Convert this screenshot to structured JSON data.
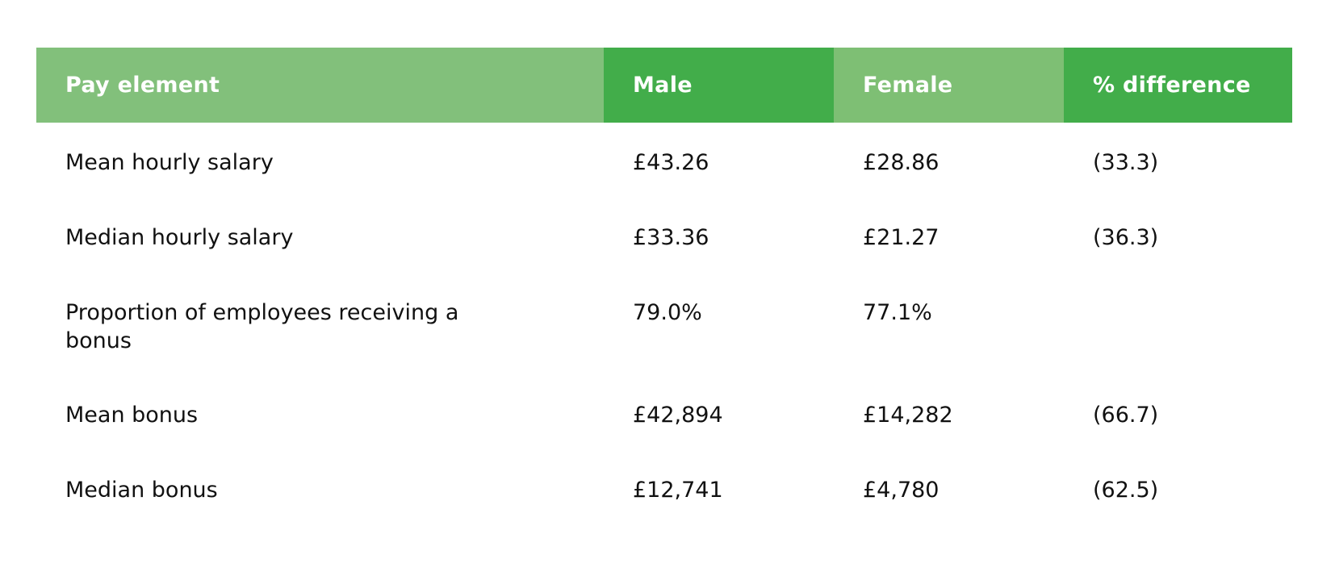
{
  "table": {
    "headers": [
      "Pay element",
      "Male",
      "Female",
      "% difference"
    ],
    "header_colors": [
      "#82c07b",
      "#42ad4a",
      "#7ebf74",
      "#42ad4a"
    ],
    "rows": [
      [
        "Mean hourly salary",
        "£43.26",
        "£28.86",
        "(33.3)"
      ],
      [
        "Median hourly salary",
        "£33.36",
        "£21.27",
        "(36.3)"
      ],
      [
        "Proportion of employees receiving a bonus",
        "79.0%",
        "77.1%",
        ""
      ],
      [
        "Mean bonus",
        "£42,894",
        "£14,282",
        "(66.7)"
      ],
      [
        "Median bonus",
        "£12,741",
        "£4,780",
        "(62.5)"
      ]
    ]
  }
}
